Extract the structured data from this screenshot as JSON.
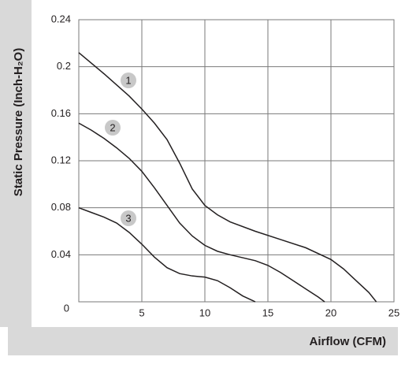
{
  "chart_data": {
    "type": "line",
    "xlabel": "Airflow (CFM)",
    "ylabel": "Static Pressure (Inch-H₂O)",
    "xlim": [
      0,
      25
    ],
    "xticks": [
      5,
      10,
      15,
      20,
      25
    ],
    "ylim": [
      0,
      0.24
    ],
    "yticks": [
      0,
      0.04,
      0.08,
      0.12,
      0.16,
      0.2,
      0.24
    ],
    "grid": true,
    "series": [
      {
        "name": "1",
        "color": "#231f20",
        "x": [
          0,
          2,
          4,
          5,
          6,
          7,
          8,
          9,
          10,
          11,
          12,
          14,
          16,
          18,
          20,
          21,
          22,
          23,
          23.6
        ],
        "values": [
          0.212,
          0.194,
          0.175,
          0.164,
          0.152,
          0.138,
          0.118,
          0.096,
          0.082,
          0.074,
          0.068,
          0.06,
          0.053,
          0.046,
          0.036,
          0.028,
          0.018,
          0.008,
          0
        ]
      },
      {
        "name": "2",
        "color": "#231f20",
        "x": [
          0,
          1,
          2,
          3,
          4,
          5,
          6,
          7,
          8,
          9,
          10,
          11,
          12,
          14,
          15,
          16,
          17,
          18,
          19,
          19.5
        ],
        "values": [
          0.152,
          0.146,
          0.139,
          0.131,
          0.122,
          0.111,
          0.097,
          0.082,
          0.067,
          0.056,
          0.048,
          0.043,
          0.04,
          0.035,
          0.031,
          0.025,
          0.018,
          0.011,
          0.004,
          0
        ]
      },
      {
        "name": "3",
        "color": "#231f20",
        "x": [
          0,
          1,
          2,
          3,
          4,
          5,
          6,
          7,
          8,
          9,
          10,
          11,
          12,
          13,
          14
        ],
        "values": [
          0.08,
          0.076,
          0.072,
          0.067,
          0.059,
          0.049,
          0.038,
          0.029,
          0.024,
          0.022,
          0.021,
          0.018,
          0.012,
          0.005,
          0
        ]
      }
    ]
  }
}
